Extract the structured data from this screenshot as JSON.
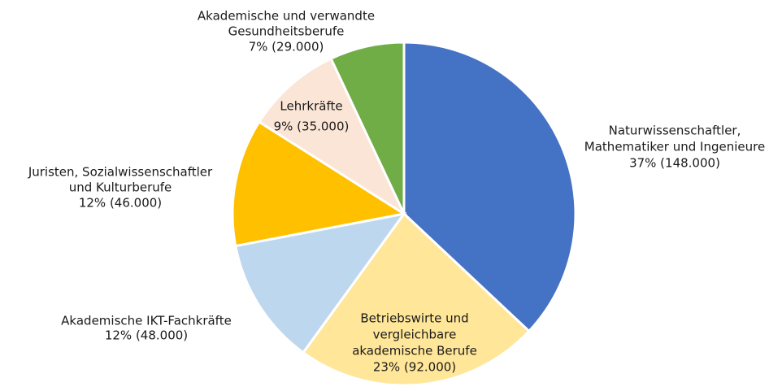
{
  "chart_data": {
    "type": "pie",
    "categories": [
      [
        "Naturwissenschaftler,",
        "Mathematiker und Ingenieure"
      ],
      [
        "Betriebswirte und",
        "vergleichbare",
        "akademische Berufe"
      ],
      [
        "Akademische IKT-Fachkräfte"
      ],
      [
        "Juristen, Sozialwissenschaftler",
        "und Kulturberufe"
      ],
      [
        "Lehrkräfte"
      ],
      [
        "Akademische und verwandte",
        "Gesundheitsberufe"
      ]
    ],
    "values": [
      37,
      23,
      12,
      12,
      9,
      7
    ],
    "value_labels": [
      "37% (148.000)",
      "23% (92.000)",
      "12% (48.000)",
      "12% (46.000)",
      "9% (35.000)",
      "7% (29.000)"
    ],
    "colors": [
      "#4472c4",
      "#ffe699",
      "#bdd7ee",
      "#ffc000",
      "#fbe5d6",
      "#70ad47"
    ]
  }
}
